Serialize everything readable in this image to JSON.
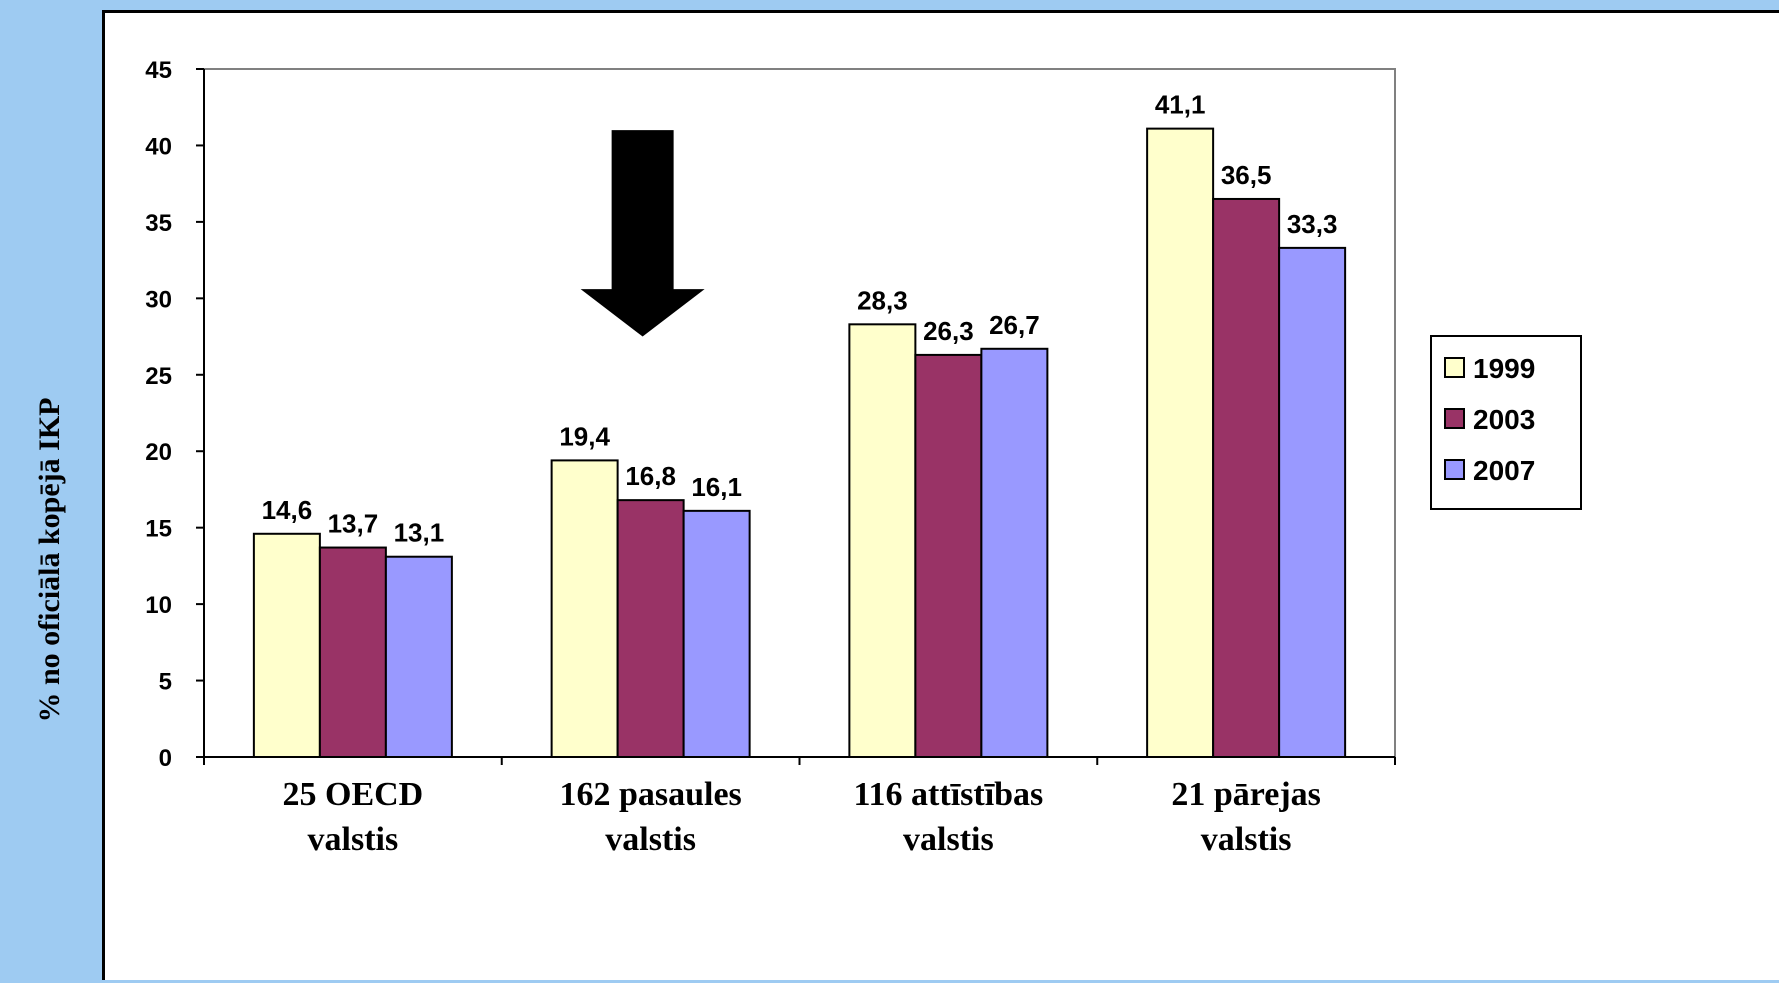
{
  "chart_data": {
    "type": "bar",
    "categories": [
      [
        "25 OECD",
        "valstis"
      ],
      [
        "162 pasaules",
        "valstis"
      ],
      [
        "116 attīstības",
        "valstis"
      ],
      [
        "21 pārejas",
        "valstis"
      ]
    ],
    "series": [
      {
        "name": "1999",
        "color": "#ffffcc",
        "values": [
          14.6,
          19.4,
          28.3,
          41.1
        ],
        "labels": [
          "14,6",
          "19,4",
          "28,3",
          "41,1"
        ]
      },
      {
        "name": "2003",
        "color": "#993366",
        "values": [
          13.7,
          16.8,
          26.3,
          36.5
        ],
        "labels": [
          "13,7",
          "16,8",
          "26,3",
          "36,5"
        ]
      },
      {
        "name": "2007",
        "color": "#9999ff",
        "values": [
          13.1,
          16.1,
          26.7,
          33.3
        ],
        "labels": [
          "13,1",
          "16,1",
          "26,7",
          "33,3"
        ]
      }
    ],
    "ylabel": "% no oficiālā kopējā IKP",
    "ylim": [
      0,
      45
    ],
    "yticks": [
      0,
      5,
      10,
      15,
      20,
      25,
      30,
      35,
      40,
      45
    ],
    "grid": false,
    "legend": "right",
    "annotations": [
      {
        "type": "down-arrow",
        "category": "162 pasaules valstis"
      }
    ]
  }
}
